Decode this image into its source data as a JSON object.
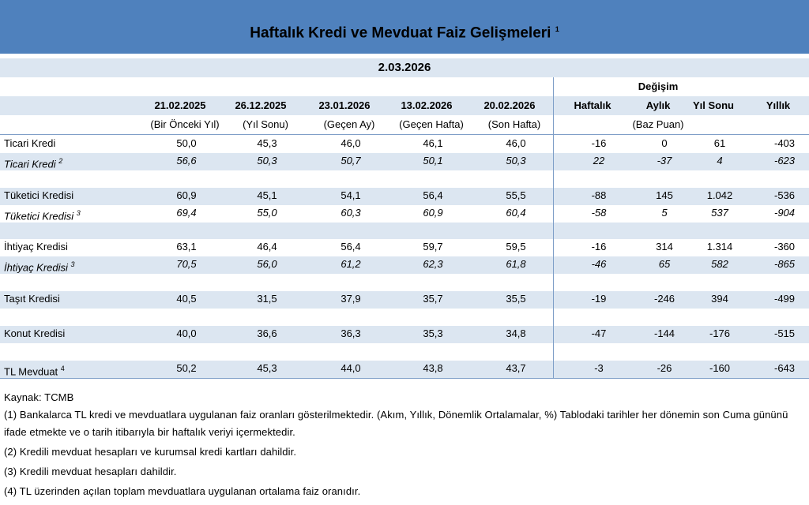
{
  "header": {
    "title": "Haftalık Kredi ve Mevduat Faiz Gelişmeleri",
    "title_note": "1",
    "date": "2.03.2026"
  },
  "table": {
    "group_header": "Değişim",
    "change_unit": "(Baz Puan)",
    "columns": [
      {
        "label": "21.02.2025",
        "sub": "(Bir Önceki Yıl)"
      },
      {
        "label": "26.12.2025",
        "sub": "(Yıl Sonu)"
      },
      {
        "label": "23.01.2026",
        "sub": "(Geçen Ay)"
      },
      {
        "label": "13.02.2026",
        "sub": "(Geçen Hafta)"
      },
      {
        "label": "20.02.2026",
        "sub": "(Son Hafta)"
      },
      {
        "label": "Haftalık"
      },
      {
        "label": "Aylık"
      },
      {
        "label": "Yıl Sonu"
      },
      {
        "label": "Yıllık"
      }
    ],
    "rows": [
      {
        "label": "Ticari Kredi",
        "cells": [
          "50,0",
          "45,3",
          "46,0",
          "46,1",
          "46,0",
          "-16",
          "0",
          "61",
          "-403"
        ]
      },
      {
        "label": "Ticari Kredi",
        "note": "2",
        "italic": true,
        "cells": [
          "56,6",
          "50,3",
          "50,7",
          "50,1",
          "50,3",
          "22",
          "-37",
          "4",
          "-623"
        ]
      },
      {
        "label": "Tüketici Kredisi",
        "cells": [
          "60,9",
          "45,1",
          "54,1",
          "56,4",
          "55,5",
          "-88",
          "145",
          "1.042",
          "-536"
        ]
      },
      {
        "label": "Tüketici Kredisi",
        "note": "3",
        "italic": true,
        "cells": [
          "69,4",
          "55,0",
          "60,3",
          "60,9",
          "60,4",
          "-58",
          "5",
          "537",
          "-904"
        ]
      },
      {
        "label": "İhtiyaç Kredisi",
        "cells": [
          "63,1",
          "46,4",
          "56,4",
          "59,7",
          "59,5",
          "-16",
          "314",
          "1.314",
          "-360"
        ]
      },
      {
        "label": "İhtiyaç Kredisi",
        "note": "3",
        "italic": true,
        "cells": [
          "70,5",
          "56,0",
          "61,2",
          "62,3",
          "61,8",
          "-46",
          "65",
          "582",
          "-865"
        ]
      },
      {
        "label": "Taşıt Kredisi",
        "cells": [
          "40,5",
          "31,5",
          "37,9",
          "35,7",
          "35,5",
          "-19",
          "-246",
          "394",
          "-499"
        ]
      },
      {
        "label": "Konut Kredisi",
        "cells": [
          "40,0",
          "36,6",
          "36,3",
          "35,3",
          "34,8",
          "-47",
          "-144",
          "-176",
          "-515"
        ]
      },
      {
        "label": "TL Mevduat",
        "note": "4",
        "cells": [
          "50,2",
          "45,3",
          "44,0",
          "43,8",
          "43,7",
          "-3",
          "-26",
          "-160",
          "-643"
        ]
      }
    ]
  },
  "footer": {
    "source": "Kaynak: TCMB",
    "notes": [
      "(1) Bankalarca TL kredi ve mevduatlara uygulanan faiz oranları gösterilmektedir. (Akım, Yıllık, Dönemlik Ortalamalar, %) Tablodaki tarihler her dönemin son Cuma gününü ifade etmekte  ve o tarih itibarıyla bir haftalık veriyi içermektedir.",
      "(2) Kredili mevduat hesapları ve kurumsal kredi kartları dahildir.",
      "(3) Kredili mevduat hesapları dahildir.",
      "(4) TL üzerinden açılan toplam mevduatlara uygulanan ortalama faiz oranıdır."
    ]
  }
}
